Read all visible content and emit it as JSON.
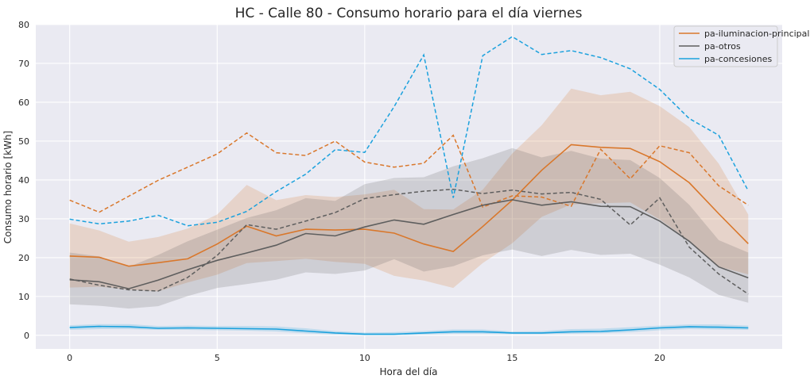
{
  "chart_data": {
    "type": "line",
    "title": "HC - Calle 80 - Consumo horario para el día viernes",
    "xlabel": "Hora del día",
    "ylabel": "Consumo horario [kWh]",
    "xlim": [
      -1.15,
      24.15
    ],
    "ylim": [
      -3.5,
      80
    ],
    "xticks": [
      0,
      5,
      10,
      15,
      20
    ],
    "yticks": [
      0,
      10,
      20,
      30,
      40,
      50,
      60,
      70,
      80
    ],
    "grid": true,
    "legend_position": "top-right",
    "x": [
      0,
      1,
      2,
      3,
      4,
      5,
      6,
      7,
      8,
      9,
      10,
      11,
      12,
      13,
      14,
      15,
      16,
      17,
      18,
      19,
      20,
      21,
      22,
      23
    ],
    "series": [
      {
        "name": "pa-iluminacion-principal",
        "color": "#d9772b",
        "mean": [
          20.4,
          20.1,
          17.8,
          18.7,
          19.7,
          23.5,
          28.1,
          25.6,
          27.3,
          27.1,
          27.3,
          26.3,
          23.5,
          21.6,
          28.0,
          34.8,
          42.5,
          49.1,
          48.4,
          48.1,
          44.7,
          39.3,
          31.3,
          23.6
        ],
        "ci_lower": [
          12.3,
          12.5,
          11.8,
          11.3,
          13.6,
          15.6,
          18.6,
          19.1,
          19.7,
          18.9,
          18.4,
          15.3,
          14.1,
          12.2,
          18.6,
          23.7,
          30.5,
          33.7,
          34.0,
          34.2,
          29.8,
          24.4,
          17.7,
          15.7
        ],
        "ci_upper": [
          28.8,
          27.0,
          24.1,
          25.3,
          27.5,
          31.1,
          38.7,
          34.8,
          36.1,
          35.6,
          36.3,
          37.5,
          32.5,
          32.4,
          37.5,
          46.8,
          54.1,
          63.5,
          61.8,
          62.7,
          59.0,
          53.6,
          44.2,
          31.1
        ],
        "dashed": [
          34.8,
          31.7,
          35.8,
          39.9,
          43.3,
          46.7,
          52.1,
          47.0,
          46.3,
          50.0,
          44.6,
          43.3,
          44.3,
          51.5,
          33.0,
          35.9,
          35.6,
          33.2,
          47.9,
          40.3,
          48.8,
          47.0,
          38.5,
          33.5
        ]
      },
      {
        "name": "pa-otros",
        "color": "#5e5e5e",
        "mean": [
          14.3,
          13.8,
          12.0,
          14.2,
          16.9,
          19.3,
          21.2,
          23.2,
          26.2,
          25.6,
          27.9,
          29.7,
          28.6,
          31.1,
          33.5,
          34.9,
          33.5,
          34.4,
          33.2,
          33.1,
          29.4,
          24.2,
          17.6,
          14.8
        ],
        "ci_lower": [
          8.0,
          7.6,
          6.9,
          7.5,
          10.1,
          12.2,
          13.2,
          14.3,
          16.2,
          15.8,
          16.7,
          19.6,
          16.4,
          17.8,
          20.6,
          22.1,
          20.4,
          22.0,
          20.7,
          21.0,
          18.2,
          14.9,
          10.4,
          8.4
        ],
        "ci_upper": [
          21.3,
          20.3,
          17.6,
          20.7,
          24.2,
          27.2,
          30.2,
          32.2,
          35.3,
          34.6,
          38.9,
          40.5,
          40.7,
          43.5,
          45.6,
          48.2,
          45.8,
          47.5,
          45.5,
          45.1,
          40.5,
          33.6,
          24.5,
          21.3
        ],
        "dashed": [
          14.5,
          12.9,
          11.7,
          11.4,
          14.9,
          20.6,
          28.5,
          27.3,
          29.4,
          31.6,
          35.2,
          36.2,
          37.1,
          37.6,
          36.5,
          37.4,
          36.4,
          36.8,
          35.0,
          28.4,
          35.4,
          22.7,
          15.8,
          10.6
        ]
      },
      {
        "name": "pa-concesiones",
        "color": "#1ba1dd",
        "mean": [
          2.0,
          2.3,
          2.2,
          1.8,
          1.9,
          1.8,
          1.7,
          1.6,
          1.1,
          0.6,
          0.3,
          0.3,
          0.6,
          0.9,
          0.9,
          0.6,
          0.6,
          0.9,
          1.0,
          1.4,
          1.9,
          2.2,
          2.1,
          1.9
        ],
        "ci_lower": [
          1.4,
          1.6,
          1.6,
          1.4,
          1.4,
          1.3,
          1.2,
          1.0,
          0.5,
          0.2,
          0.0,
          0.0,
          0.2,
          0.4,
          0.4,
          0.3,
          0.3,
          0.4,
          0.5,
          0.8,
          1.3,
          1.6,
          1.5,
          1.4
        ],
        "ci_upper": [
          2.6,
          2.9,
          2.9,
          2.4,
          2.5,
          2.4,
          2.4,
          2.3,
          1.8,
          1.1,
          0.7,
          0.8,
          1.1,
          1.5,
          1.5,
          1.0,
          1.1,
          1.6,
          1.7,
          2.1,
          2.5,
          2.8,
          2.8,
          2.5
        ],
        "dashed": [
          29.9,
          28.7,
          29.4,
          30.9,
          28.2,
          29.1,
          31.9,
          37.0,
          41.5,
          47.8,
          47.1,
          58.9,
          72.2,
          35.4,
          72.0,
          76.9,
          72.3,
          73.3,
          71.5,
          68.6,
          63.3,
          55.8,
          51.5,
          37.2
        ]
      }
    ]
  }
}
